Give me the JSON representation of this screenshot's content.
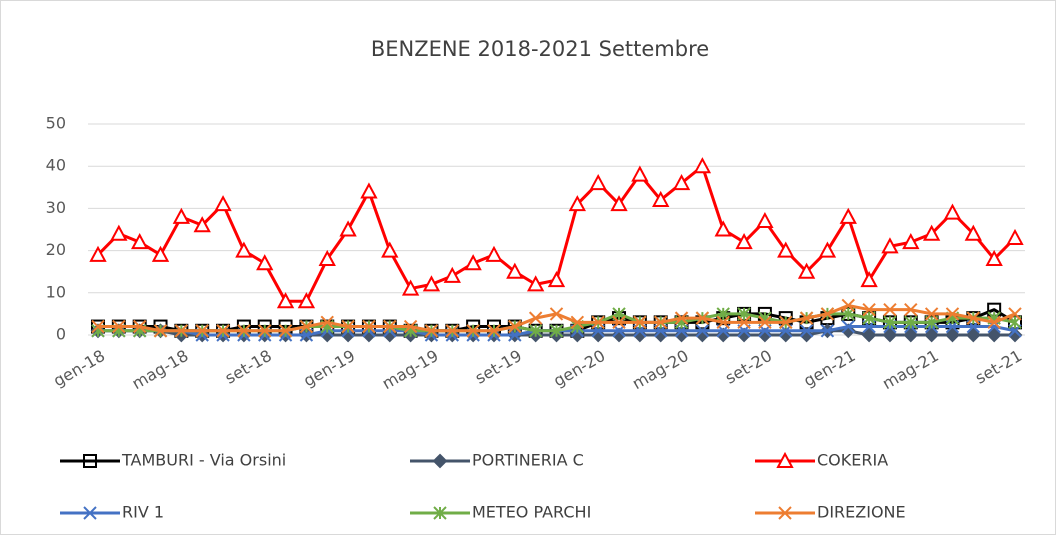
{
  "chart_data": {
    "type": "line",
    "title": "BENZENE 2018-2021 Settembre",
    "categories": [
      "gen-18",
      null,
      null,
      null,
      "mag-18",
      null,
      null,
      null,
      "set-18",
      null,
      null,
      null,
      "gen-19",
      null,
      null,
      null,
      "mag-19",
      null,
      null,
      null,
      "set-19",
      null,
      null,
      null,
      "gen-20",
      null,
      null,
      null,
      "mag-20",
      null,
      null,
      null,
      "set-20",
      null,
      null,
      null,
      "gen-21",
      null,
      null,
      null,
      "mag-21",
      null,
      null,
      null,
      "set-21"
    ],
    "ylim": [
      0,
      50
    ],
    "yticks": [
      0,
      10,
      20,
      30,
      40,
      50
    ],
    "grid": true,
    "series": [
      {
        "name": "TAMBURI - Via Orsini",
        "color": "#000000",
        "marker": "square",
        "values": [
          2,
          2,
          2,
          2,
          1,
          1,
          1,
          2,
          2,
          2,
          2,
          2,
          2,
          2,
          2,
          1,
          1,
          1,
          2,
          2,
          2,
          1,
          1,
          1,
          3,
          4,
          3,
          3,
          3,
          3,
          4,
          5,
          5,
          4,
          3,
          4,
          5,
          4,
          3,
          3,
          3,
          3,
          4,
          6,
          3
        ]
      },
      {
        "name": "PORTINERIA C",
        "color": "#44546a",
        "marker": "diamond",
        "values": [
          1,
          1,
          1,
          1,
          0,
          0,
          0,
          0,
          0,
          0,
          0,
          0,
          0,
          0,
          0,
          0,
          0,
          0,
          0,
          0,
          0,
          0,
          0,
          0,
          0,
          0,
          0,
          0,
          0,
          0,
          0,
          0,
          0,
          0,
          0,
          1,
          1,
          0,
          0,
          0,
          0,
          0,
          0,
          0,
          0
        ]
      },
      {
        "name": "COKERIA",
        "color": "#ff0000",
        "marker": "triangle",
        "values": [
          19,
          24,
          22,
          19,
          28,
          26,
          31,
          20,
          17,
          8,
          8,
          18,
          25,
          34,
          20,
          11,
          12,
          14,
          17,
          19,
          15,
          12,
          13,
          31,
          36,
          31,
          38,
          32,
          36,
          40,
          25,
          22,
          27,
          20,
          15,
          20,
          28,
          13,
          21,
          22,
          24,
          29,
          24,
          18,
          23
        ]
      },
      {
        "name": "RIV 1",
        "color": "#4472c4",
        "marker": "x",
        "values": [
          1,
          1,
          1,
          1,
          1,
          0,
          0,
          0,
          0,
          0,
          0,
          1,
          1,
          1,
          1,
          1,
          0,
          0,
          0,
          0,
          0,
          1,
          1,
          1,
          1,
          1,
          1,
          1,
          1,
          1,
          1,
          1,
          1,
          1,
          1,
          1,
          2,
          2,
          2,
          2,
          2,
          2,
          2,
          2,
          1
        ]
      },
      {
        "name": "METEO PARCHI",
        "color": "#70ad47",
        "marker": "star",
        "values": [
          1,
          1,
          1,
          1,
          1,
          1,
          1,
          1,
          1,
          1,
          2,
          2,
          2,
          2,
          2,
          1,
          1,
          1,
          1,
          1,
          2,
          1,
          1,
          2,
          3,
          5,
          3,
          3,
          3,
          4,
          5,
          5,
          4,
          3,
          4,
          5,
          5,
          4,
          3,
          3,
          3,
          4,
          4,
          4,
          3
        ]
      },
      {
        "name": "DIREZIONE",
        "color": "#ed7d31",
        "marker": "x",
        "values": [
          2,
          2,
          2,
          1,
          1,
          1,
          1,
          1,
          1,
          1,
          2,
          3,
          2,
          2,
          2,
          2,
          1,
          1,
          1,
          1,
          2,
          4,
          5,
          3,
          3,
          3,
          3,
          3,
          4,
          4,
          3,
          3,
          3,
          3,
          4,
          5,
          7,
          6,
          6,
          6,
          5,
          5,
          4,
          3,
          5
        ]
      }
    ]
  }
}
